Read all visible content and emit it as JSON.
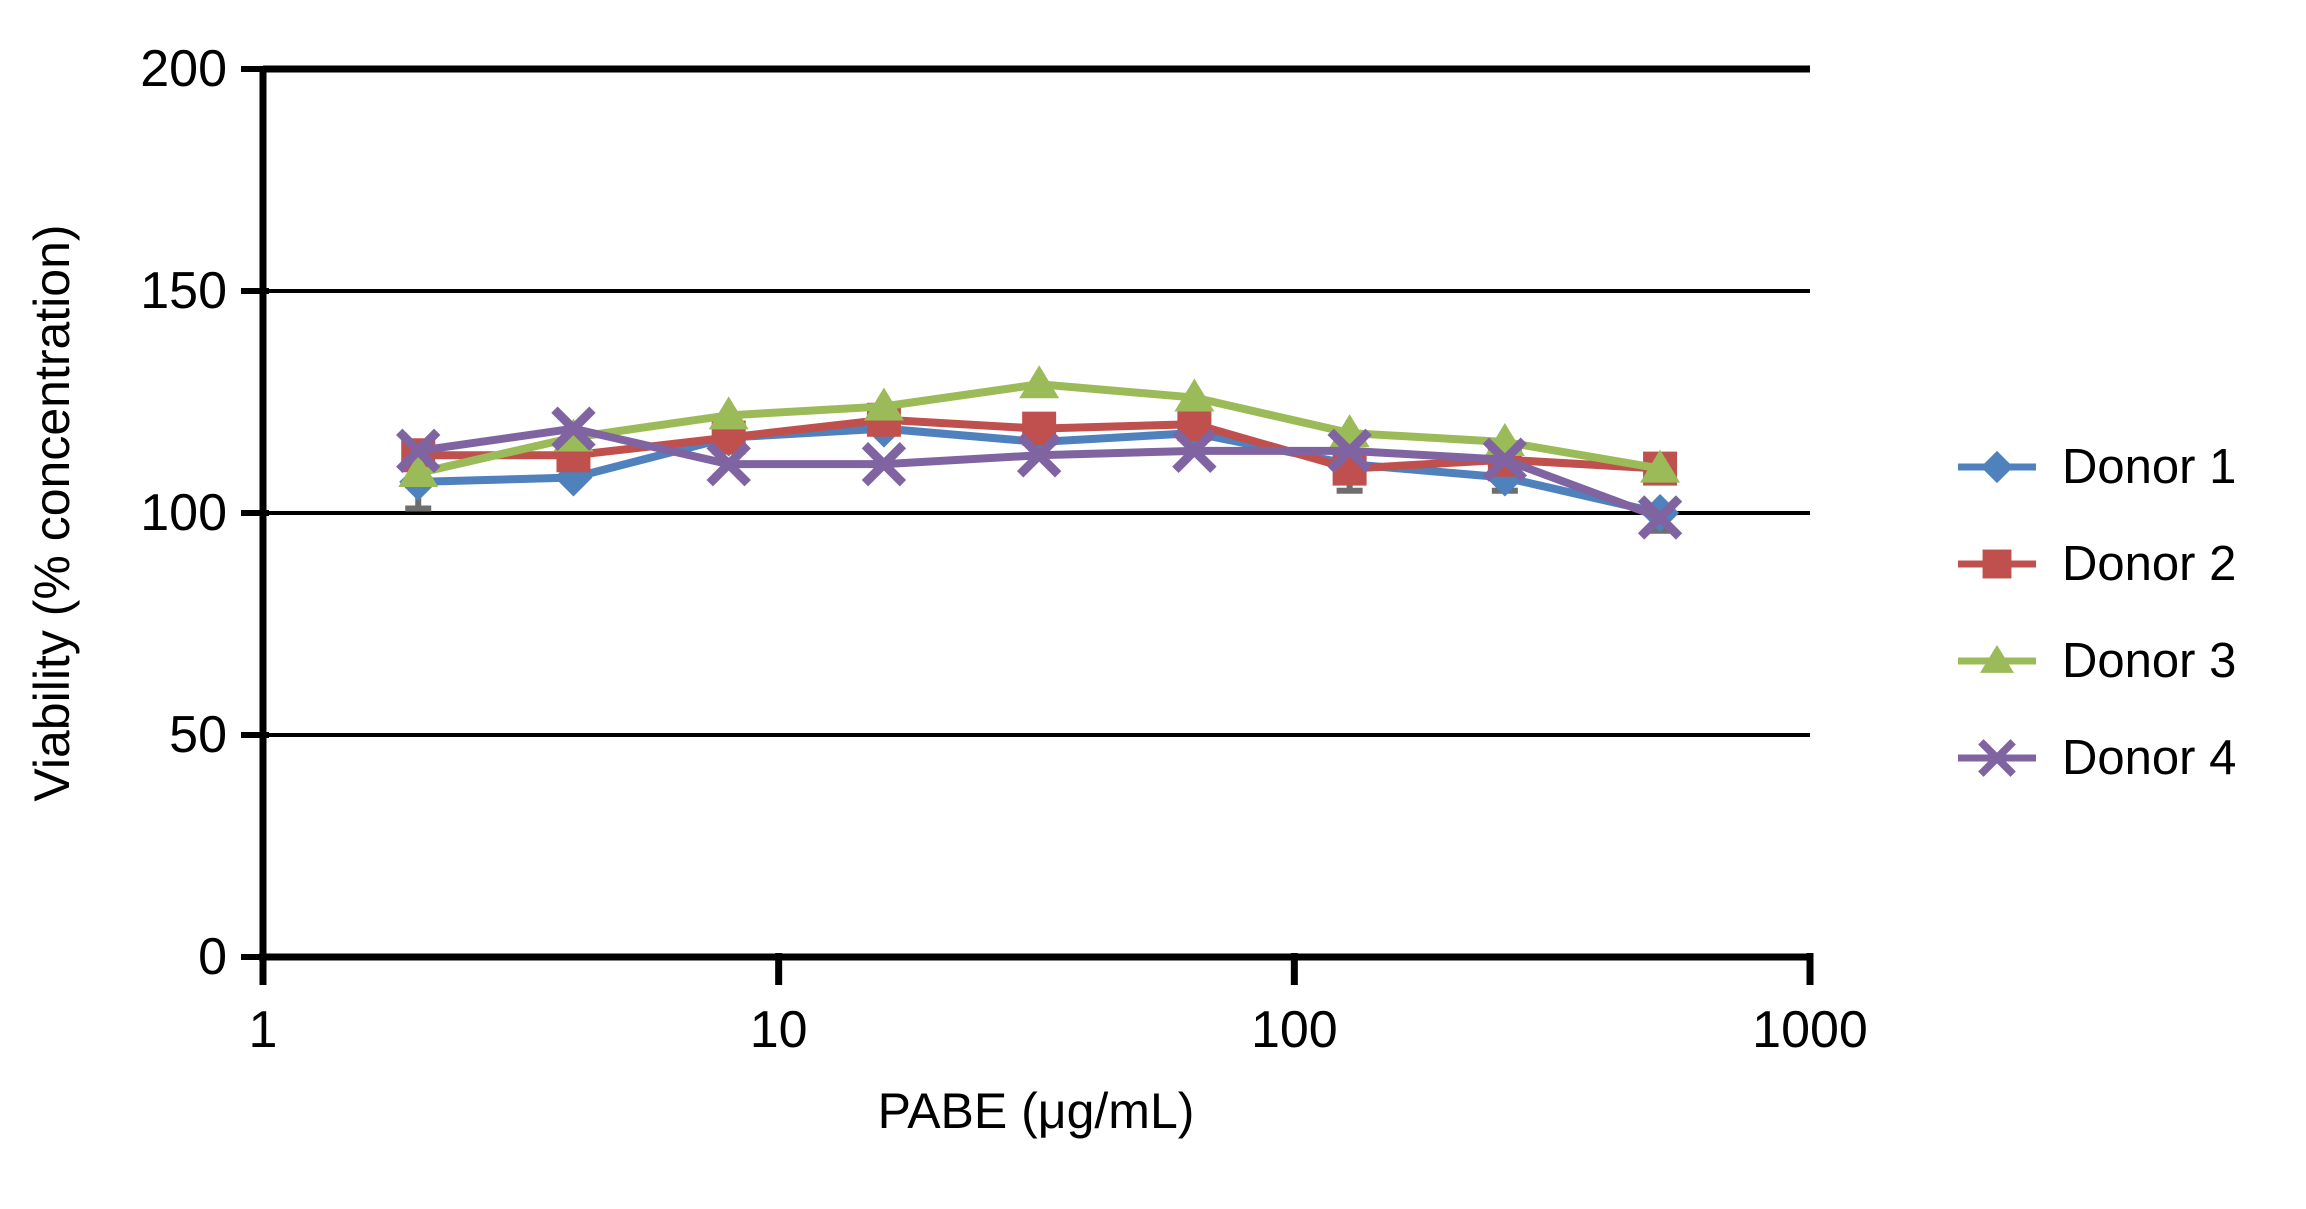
{
  "chart_data": {
    "type": "line",
    "title": "",
    "xlabel": "PABE (μg/mL)",
    "ylabel": "Viability (% concentration)",
    "x_scale": "log",
    "xlim": [
      1,
      1000
    ],
    "ylim": [
      0,
      200
    ],
    "x_ticks": [
      "1",
      "10",
      "100",
      "1000"
    ],
    "y_ticks": [
      "0",
      "50",
      "100",
      "150",
      "200"
    ],
    "grid": "horizontal-only",
    "legend_position": "right-outside",
    "x": [
      2,
      4,
      8,
      16,
      32,
      64,
      128,
      256,
      512
    ],
    "series": [
      {
        "name": "Donor 1",
        "marker": "diamond",
        "color": "#4F81BD",
        "values": [
          107,
          108,
          117,
          119,
          116,
          118,
          111,
          108,
          100
        ]
      },
      {
        "name": "Donor 2",
        "marker": "square",
        "color": "#C0504D",
        "values": [
          113,
          113,
          117,
          121,
          119,
          120,
          110,
          112,
          110
        ]
      },
      {
        "name": "Donor 3",
        "marker": "triangle",
        "color": "#9BBB59",
        "values": [
          109,
          117,
          122,
          124,
          129,
          126,
          118,
          116,
          110
        ]
      },
      {
        "name": "Donor 4",
        "marker": "x",
        "color": "#8064A2",
        "values": [
          114,
          119,
          111,
          111,
          113,
          114,
          114,
          112,
          99
        ]
      }
    ],
    "error_bars": [
      {
        "x": 2,
        "y": 107,
        "low": 101
      },
      {
        "x": 128,
        "y": 110,
        "low": 105
      },
      {
        "x": 256,
        "y": 108,
        "low": 105
      },
      {
        "x": 512,
        "y": 99,
        "low": 96
      }
    ],
    "axis_color": "#000000",
    "error_bar_color": "#6e6e6e"
  }
}
